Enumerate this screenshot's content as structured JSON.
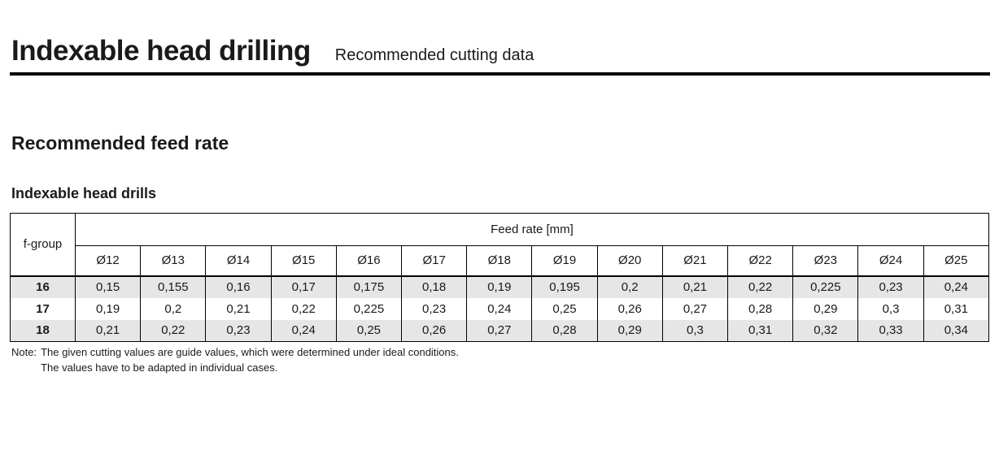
{
  "header": {
    "title": "Indexable head drilling",
    "subtitle": "Recommended cutting data"
  },
  "sections": {
    "feed_rate_heading": "Recommended feed rate",
    "drills_subheading": "Indexable head drills"
  },
  "table": {
    "row_header_label": "f-group",
    "span_header": "Feed rate [mm]",
    "columns": [
      "Ø12",
      "Ø13",
      "Ø14",
      "Ø15",
      "Ø16",
      "Ø17",
      "Ø18",
      "Ø19",
      "Ø20",
      "Ø21",
      "Ø22",
      "Ø23",
      "Ø24",
      "Ø25"
    ],
    "rows": [
      {
        "group": "16",
        "shaded": true,
        "values": [
          "0,15",
          "0,155",
          "0,16",
          "0,17",
          "0,175",
          "0,18",
          "0,19",
          "0,195",
          "0,2",
          "0,21",
          "0,22",
          "0,225",
          "0,23",
          "0,24"
        ]
      },
      {
        "group": "17",
        "shaded": false,
        "values": [
          "0,19",
          "0,2",
          "0,21",
          "0,22",
          "0,225",
          "0,23",
          "0,24",
          "0,25",
          "0,26",
          "0,27",
          "0,28",
          "0,29",
          "0,3",
          "0,31"
        ]
      },
      {
        "group": "18",
        "shaded": true,
        "values": [
          "0,21",
          "0,22",
          "0,23",
          "0,24",
          "0,25",
          "0,26",
          "0,27",
          "0,28",
          "0,29",
          "0,3",
          "0,31",
          "0,32",
          "0,33",
          "0,34"
        ]
      }
    ]
  },
  "note": {
    "label": "Note:",
    "line1": "The given cutting values are guide values, which were determined under ideal conditions.",
    "line2": "The values have to be adapted in individual cases."
  },
  "colors": {
    "text": "#1a1a1a",
    "row_shade": "#e6e6e6",
    "border": "#000000",
    "rule": "#000000"
  }
}
